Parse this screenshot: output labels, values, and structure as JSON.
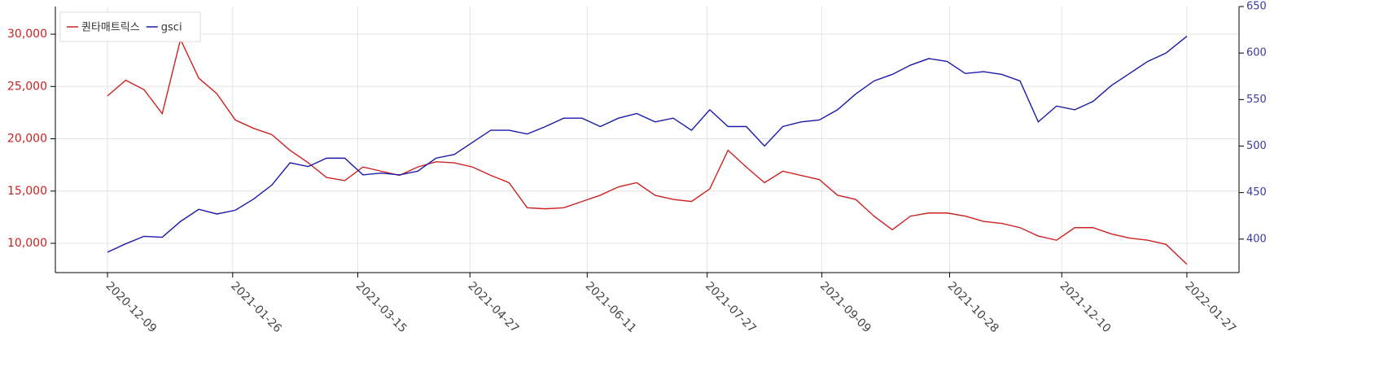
{
  "chart_data": {
    "type": "line",
    "x": [
      "2020-12-09",
      "2020-12-16",
      "2020-12-23",
      "2020-12-30",
      "2021-01-06",
      "2021-01-13",
      "2021-01-20",
      "2021-01-27",
      "2021-02-03",
      "2021-02-10",
      "2021-02-17",
      "2021-02-24",
      "2021-03-03",
      "2021-03-10",
      "2021-03-17",
      "2021-03-24",
      "2021-03-31",
      "2021-04-07",
      "2021-04-14",
      "2021-04-21",
      "2021-04-28",
      "2021-05-05",
      "2021-05-12",
      "2021-05-19",
      "2021-05-26",
      "2021-06-02",
      "2021-06-09",
      "2021-06-16",
      "2021-06-23",
      "2021-06-30",
      "2021-07-07",
      "2021-07-14",
      "2021-07-21",
      "2021-07-28",
      "2021-08-04",
      "2021-08-11",
      "2021-08-18",
      "2021-08-25",
      "2021-09-01",
      "2021-09-08",
      "2021-09-15",
      "2021-09-22",
      "2021-09-29",
      "2021-10-06",
      "2021-10-13",
      "2021-10-20",
      "2021-10-27",
      "2021-11-03",
      "2021-11-10",
      "2021-11-17",
      "2021-11-24",
      "2021-12-01",
      "2021-12-08",
      "2021-12-15",
      "2021-12-22",
      "2021-12-29",
      "2022-01-05",
      "2022-01-12",
      "2022-01-19",
      "2022-01-27"
    ],
    "series": [
      {
        "name": "퀀타매트릭스",
        "color": "#cc2222",
        "values": [
          24100,
          25600,
          24700,
          22400,
          29500,
          25800,
          24300,
          21800,
          21000,
          20400,
          18900,
          17700,
          16300,
          16000,
          17300,
          16900,
          16500,
          17300,
          17800,
          17700,
          17300,
          16500,
          15800,
          13400,
          13300,
          13400,
          14000,
          14600,
          15400,
          15800,
          14600,
          14200,
          14000,
          15200,
          18900,
          17300,
          15800,
          16900,
          16500,
          16100,
          14600,
          14200,
          12600,
          11300,
          12600,
          12900,
          12900,
          12600,
          12100,
          11900,
          11500,
          10700,
          10300,
          11500,
          11500,
          10900,
          10500,
          10300,
          9900,
          8000
        ]
      },
      {
        "name": "gsci",
        "color": "#1a1aaa",
        "axis": "y2",
        "values": [
          386,
          395,
          403,
          402,
          419,
          432,
          427,
          431,
          443,
          458,
          482,
          478,
          487,
          487,
          469,
          471,
          469,
          473,
          487,
          491,
          504,
          517,
          517,
          513,
          521,
          530,
          530,
          521,
          530,
          535,
          526,
          530,
          517,
          539,
          521,
          521,
          500,
          521,
          526,
          528,
          539,
          556,
          570,
          577,
          587,
          594,
          591,
          578,
          580,
          577,
          570,
          526,
          543,
          539,
          548,
          565,
          578,
          591,
          600,
          618
        ]
      }
    ],
    "xlim": [
      "2020-11-19",
      "2022-02-16"
    ],
    "xticks": [
      "2020-12-09",
      "2021-01-26",
      "2021-03-15",
      "2021-04-27",
      "2021-06-11",
      "2021-07-27",
      "2021-09-09",
      "2021-10-28",
      "2021-12-10",
      "2022-01-27"
    ],
    "ylim": [
      7200,
      32650
    ],
    "yticks": [
      {
        "value": 10000,
        "label": "10,000"
      },
      {
        "value": 15000,
        "label": "15,000"
      },
      {
        "value": 20000,
        "label": "20,000"
      },
      {
        "value": 25000,
        "label": "25,000"
      },
      {
        "value": 30000,
        "label": "30,000"
      }
    ],
    "y2lim": [
      364,
      650
    ],
    "y2ticks": [
      400,
      450,
      500,
      550,
      600,
      650
    ],
    "grid": true,
    "legend": "top-left"
  }
}
